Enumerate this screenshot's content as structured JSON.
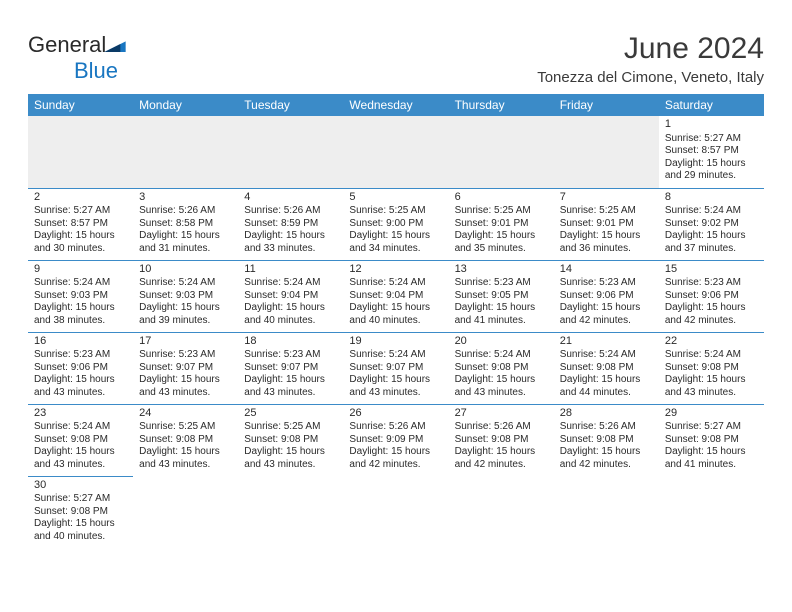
{
  "logo": {
    "word1": "General",
    "word2": "Blue",
    "text_color": "#2a2a2a",
    "accent_color": "#1976c1"
  },
  "header": {
    "month_title": "June 2024",
    "location": "Tonezza del Cimone, Veneto, Italy"
  },
  "colors": {
    "header_bg": "#3b8bc8",
    "header_text": "#ffffff",
    "cell_border": "#3b8bc8",
    "blank_bg": "#eeeeee",
    "page_bg": "#ffffff",
    "body_text": "#2a2a2a"
  },
  "day_headers": [
    "Sunday",
    "Monday",
    "Tuesday",
    "Wednesday",
    "Thursday",
    "Friday",
    "Saturday"
  ],
  "weeks": [
    [
      null,
      null,
      null,
      null,
      null,
      null,
      {
        "n": "1",
        "sr": "Sunrise: 5:27 AM",
        "ss": "Sunset: 8:57 PM",
        "d1": "Daylight: 15 hours",
        "d2": "and 29 minutes."
      }
    ],
    [
      {
        "n": "2",
        "sr": "Sunrise: 5:27 AM",
        "ss": "Sunset: 8:57 PM",
        "d1": "Daylight: 15 hours",
        "d2": "and 30 minutes."
      },
      {
        "n": "3",
        "sr": "Sunrise: 5:26 AM",
        "ss": "Sunset: 8:58 PM",
        "d1": "Daylight: 15 hours",
        "d2": "and 31 minutes."
      },
      {
        "n": "4",
        "sr": "Sunrise: 5:26 AM",
        "ss": "Sunset: 8:59 PM",
        "d1": "Daylight: 15 hours",
        "d2": "and 33 minutes."
      },
      {
        "n": "5",
        "sr": "Sunrise: 5:25 AM",
        "ss": "Sunset: 9:00 PM",
        "d1": "Daylight: 15 hours",
        "d2": "and 34 minutes."
      },
      {
        "n": "6",
        "sr": "Sunrise: 5:25 AM",
        "ss": "Sunset: 9:01 PM",
        "d1": "Daylight: 15 hours",
        "d2": "and 35 minutes."
      },
      {
        "n": "7",
        "sr": "Sunrise: 5:25 AM",
        "ss": "Sunset: 9:01 PM",
        "d1": "Daylight: 15 hours",
        "d2": "and 36 minutes."
      },
      {
        "n": "8",
        "sr": "Sunrise: 5:24 AM",
        "ss": "Sunset: 9:02 PM",
        "d1": "Daylight: 15 hours",
        "d2": "and 37 minutes."
      }
    ],
    [
      {
        "n": "9",
        "sr": "Sunrise: 5:24 AM",
        "ss": "Sunset: 9:03 PM",
        "d1": "Daylight: 15 hours",
        "d2": "and 38 minutes."
      },
      {
        "n": "10",
        "sr": "Sunrise: 5:24 AM",
        "ss": "Sunset: 9:03 PM",
        "d1": "Daylight: 15 hours",
        "d2": "and 39 minutes."
      },
      {
        "n": "11",
        "sr": "Sunrise: 5:24 AM",
        "ss": "Sunset: 9:04 PM",
        "d1": "Daylight: 15 hours",
        "d2": "and 40 minutes."
      },
      {
        "n": "12",
        "sr": "Sunrise: 5:24 AM",
        "ss": "Sunset: 9:04 PM",
        "d1": "Daylight: 15 hours",
        "d2": "and 40 minutes."
      },
      {
        "n": "13",
        "sr": "Sunrise: 5:23 AM",
        "ss": "Sunset: 9:05 PM",
        "d1": "Daylight: 15 hours",
        "d2": "and 41 minutes."
      },
      {
        "n": "14",
        "sr": "Sunrise: 5:23 AM",
        "ss": "Sunset: 9:06 PM",
        "d1": "Daylight: 15 hours",
        "d2": "and 42 minutes."
      },
      {
        "n": "15",
        "sr": "Sunrise: 5:23 AM",
        "ss": "Sunset: 9:06 PM",
        "d1": "Daylight: 15 hours",
        "d2": "and 42 minutes."
      }
    ],
    [
      {
        "n": "16",
        "sr": "Sunrise: 5:23 AM",
        "ss": "Sunset: 9:06 PM",
        "d1": "Daylight: 15 hours",
        "d2": "and 43 minutes."
      },
      {
        "n": "17",
        "sr": "Sunrise: 5:23 AM",
        "ss": "Sunset: 9:07 PM",
        "d1": "Daylight: 15 hours",
        "d2": "and 43 minutes."
      },
      {
        "n": "18",
        "sr": "Sunrise: 5:23 AM",
        "ss": "Sunset: 9:07 PM",
        "d1": "Daylight: 15 hours",
        "d2": "and 43 minutes."
      },
      {
        "n": "19",
        "sr": "Sunrise: 5:24 AM",
        "ss": "Sunset: 9:07 PM",
        "d1": "Daylight: 15 hours",
        "d2": "and 43 minutes."
      },
      {
        "n": "20",
        "sr": "Sunrise: 5:24 AM",
        "ss": "Sunset: 9:08 PM",
        "d1": "Daylight: 15 hours",
        "d2": "and 43 minutes."
      },
      {
        "n": "21",
        "sr": "Sunrise: 5:24 AM",
        "ss": "Sunset: 9:08 PM",
        "d1": "Daylight: 15 hours",
        "d2": "and 44 minutes."
      },
      {
        "n": "22",
        "sr": "Sunrise: 5:24 AM",
        "ss": "Sunset: 9:08 PM",
        "d1": "Daylight: 15 hours",
        "d2": "and 43 minutes."
      }
    ],
    [
      {
        "n": "23",
        "sr": "Sunrise: 5:24 AM",
        "ss": "Sunset: 9:08 PM",
        "d1": "Daylight: 15 hours",
        "d2": "and 43 minutes."
      },
      {
        "n": "24",
        "sr": "Sunrise: 5:25 AM",
        "ss": "Sunset: 9:08 PM",
        "d1": "Daylight: 15 hours",
        "d2": "and 43 minutes."
      },
      {
        "n": "25",
        "sr": "Sunrise: 5:25 AM",
        "ss": "Sunset: 9:08 PM",
        "d1": "Daylight: 15 hours",
        "d2": "and 43 minutes."
      },
      {
        "n": "26",
        "sr": "Sunrise: 5:26 AM",
        "ss": "Sunset: 9:09 PM",
        "d1": "Daylight: 15 hours",
        "d2": "and 42 minutes."
      },
      {
        "n": "27",
        "sr": "Sunrise: 5:26 AM",
        "ss": "Sunset: 9:08 PM",
        "d1": "Daylight: 15 hours",
        "d2": "and 42 minutes."
      },
      {
        "n": "28",
        "sr": "Sunrise: 5:26 AM",
        "ss": "Sunset: 9:08 PM",
        "d1": "Daylight: 15 hours",
        "d2": "and 42 minutes."
      },
      {
        "n": "29",
        "sr": "Sunrise: 5:27 AM",
        "ss": "Sunset: 9:08 PM",
        "d1": "Daylight: 15 hours",
        "d2": "and 41 minutes."
      }
    ],
    [
      {
        "n": "30",
        "sr": "Sunrise: 5:27 AM",
        "ss": "Sunset: 9:08 PM",
        "d1": "Daylight: 15 hours",
        "d2": "and 40 minutes."
      },
      null,
      null,
      null,
      null,
      null,
      null
    ]
  ]
}
